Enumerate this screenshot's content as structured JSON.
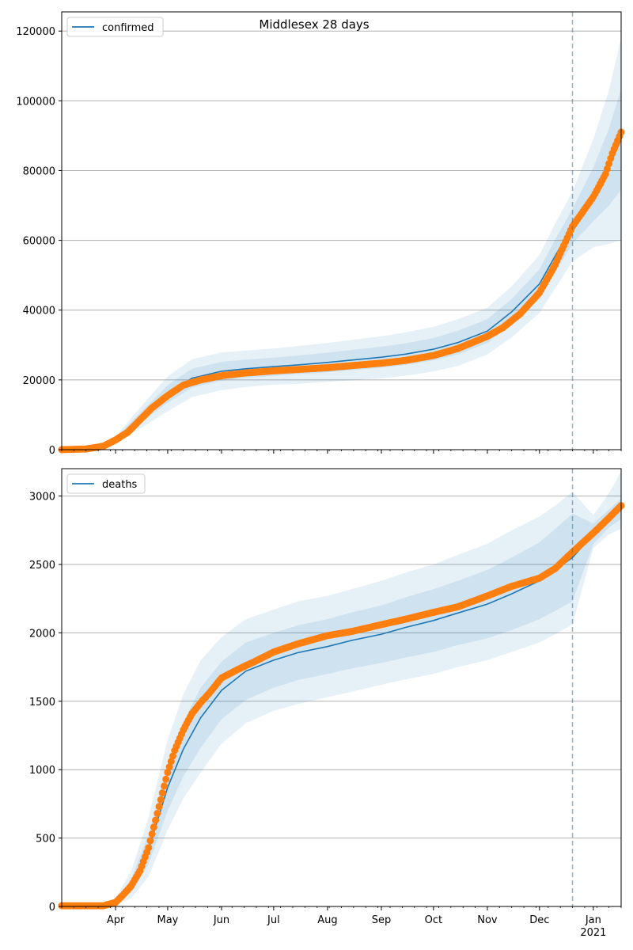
{
  "title": "Middlesex 28 days",
  "colors": {
    "model_line": "#1f77b4",
    "observed_points": "#ff7f0e",
    "band": "#1f77b4",
    "grid": "#b0b0b0",
    "forecast_divider": "#1f77b4"
  },
  "x_axis": {
    "range": [
      "2020-03-01",
      "2021-01-17"
    ],
    "month_labels": [
      {
        "date": "2020-04-01",
        "label": "Apr"
      },
      {
        "date": "2020-05-01",
        "label": "May"
      },
      {
        "date": "2020-06-01",
        "label": "Jun"
      },
      {
        "date": "2020-07-01",
        "label": "Jul"
      },
      {
        "date": "2020-08-01",
        "label": "Aug"
      },
      {
        "date": "2020-09-01",
        "label": "Sep"
      },
      {
        "date": "2020-10-01",
        "label": "Oct"
      },
      {
        "date": "2020-11-01",
        "label": "Nov"
      },
      {
        "date": "2020-12-01",
        "label": "Dec"
      },
      {
        "date": "2021-01-01",
        "label": "Jan"
      }
    ],
    "year_label": {
      "date": "2021-01-01",
      "label": "2021"
    },
    "forecast_start": "2020-12-20"
  },
  "chart_data": [
    {
      "type": "line",
      "legend": "confirmed",
      "legend_position": "top-left",
      "grid": "y",
      "ylim": [
        0,
        125500
      ],
      "yticks": [
        0,
        20000,
        40000,
        60000,
        80000,
        100000,
        120000
      ],
      "line_x": [
        "2020-03-01",
        "2020-03-20",
        "2020-04-01",
        "2020-04-15",
        "2020-05-01",
        "2020-05-15",
        "2020-06-01",
        "2020-06-15",
        "2020-07-01",
        "2020-07-15",
        "2020-08-01",
        "2020-08-15",
        "2020-09-01",
        "2020-09-15",
        "2020-10-01",
        "2020-10-15",
        "2020-11-01",
        "2020-11-15",
        "2020-12-01",
        "2020-12-10",
        "2020-12-20",
        "2021-01-01",
        "2021-01-10",
        "2021-01-17"
      ],
      "line_y": [
        0,
        800,
        3000,
        9000,
        16000,
        20500,
        22500,
        23200,
        23800,
        24300,
        25000,
        25700,
        26500,
        27400,
        28800,
        30700,
        34000,
        39500,
        47500,
        55500,
        64000,
        73000,
        81000,
        89000
      ],
      "points_x": [
        "2020-03-01",
        "2020-03-15",
        "2020-03-25",
        "2020-04-01",
        "2020-04-08",
        "2020-04-15",
        "2020-04-22",
        "2020-05-01",
        "2020-05-10",
        "2020-05-20",
        "2020-06-01",
        "2020-06-15",
        "2020-07-01",
        "2020-07-15",
        "2020-08-01",
        "2020-08-15",
        "2020-09-01",
        "2020-09-15",
        "2020-10-01",
        "2020-10-15",
        "2020-11-01",
        "2020-11-10",
        "2020-11-20",
        "2020-12-01",
        "2020-12-10",
        "2020-12-20",
        "2021-01-01",
        "2021-01-08",
        "2021-01-12",
        "2021-01-17"
      ],
      "points_y": [
        0,
        200,
        1000,
        2800,
        5000,
        8500,
        12000,
        15500,
        18500,
        20000,
        21200,
        22000,
        22600,
        23000,
        23500,
        24100,
        24800,
        25600,
        27000,
        29000,
        32500,
        35000,
        39000,
        45000,
        53000,
        64000,
        72500,
        79000,
        85000,
        91000
      ],
      "band_levels": [
        {
          "lo": [
            0,
            700,
            2600,
            7500,
            13500,
            17800,
            19800,
            20600,
            21200,
            21600,
            22200,
            22800,
            23500,
            24300,
            25600,
            27300,
            30600,
            35800,
            43300,
            50800,
            59000,
            65500,
            70000,
            74500
          ],
          "hi": [
            0,
            900,
            3400,
            10500,
            18500,
            23200,
            25200,
            25800,
            26400,
            27000,
            27800,
            28600,
            29500,
            30500,
            32000,
            34100,
            37400,
            43200,
            51700,
            60200,
            69000,
            81000,
            92000,
            103500
          ]
        },
        {
          "lo": [
            0,
            600,
            2200,
            6000,
            11000,
            15100,
            17100,
            18000,
            18600,
            18900,
            19400,
            19900,
            20500,
            21200,
            22400,
            24000,
            27300,
            32200,
            39200,
            46200,
            54000,
            58000,
            59000,
            60000
          ],
          "hi": [
            0,
            1000,
            3800,
            12000,
            21000,
            25900,
            27900,
            28400,
            29000,
            29700,
            30600,
            31500,
            32500,
            33600,
            35200,
            37400,
            40700,
            46800,
            55800,
            64800,
            74000,
            89000,
            103000,
            118000
          ]
        }
      ]
    },
    {
      "type": "line",
      "legend": "deaths",
      "legend_position": "top-left",
      "grid": "y",
      "ylim": [
        0,
        3200
      ],
      "yticks": [
        0,
        500,
        1000,
        1500,
        2000,
        2500,
        3000
      ],
      "line_x": [
        "2020-03-01",
        "2020-03-25",
        "2020-04-01",
        "2020-04-10",
        "2020-04-20",
        "2020-05-01",
        "2020-05-10",
        "2020-05-20",
        "2020-06-01",
        "2020-06-15",
        "2020-07-01",
        "2020-07-15",
        "2020-08-01",
        "2020-08-15",
        "2020-09-01",
        "2020-09-15",
        "2020-10-01",
        "2020-10-15",
        "2020-11-01",
        "2020-11-15",
        "2020-12-01",
        "2020-12-10",
        "2020-12-20",
        "2021-01-01",
        "2021-01-10",
        "2021-01-17"
      ],
      "line_y": [
        0,
        0,
        30,
        150,
        420,
        870,
        1150,
        1380,
        1580,
        1720,
        1800,
        1855,
        1900,
        1945,
        1990,
        2040,
        2090,
        2145,
        2210,
        2285,
        2380,
        2460,
        2550,
        2720,
        2830,
        2900
      ],
      "points_x": [
        "2020-03-01",
        "2020-03-25",
        "2020-04-01",
        "2020-04-05",
        "2020-04-10",
        "2020-04-15",
        "2020-04-20",
        "2020-04-25",
        "2020-05-01",
        "2020-05-05",
        "2020-05-10",
        "2020-05-15",
        "2020-05-20",
        "2020-05-25",
        "2020-06-01",
        "2020-06-10",
        "2020-06-20",
        "2020-07-01",
        "2020-07-15",
        "2020-08-01",
        "2020-08-15",
        "2020-09-01",
        "2020-09-15",
        "2020-10-01",
        "2020-10-15",
        "2020-11-01",
        "2020-11-15",
        "2020-12-01",
        "2020-12-10",
        "2020-12-20",
        "2021-01-01",
        "2021-01-10",
        "2021-01-17"
      ],
      "points_y": [
        5,
        5,
        30,
        80,
        150,
        260,
        430,
        680,
        980,
        1140,
        1290,
        1410,
        1490,
        1560,
        1670,
        1730,
        1790,
        1860,
        1920,
        1980,
        2010,
        2060,
        2100,
        2150,
        2190,
        2270,
        2340,
        2400,
        2470,
        2590,
        2730,
        2840,
        2930
      ],
      "band_levels": [
        {
          "lo": [
            0,
            0,
            20,
            100,
            310,
            700,
            950,
            1160,
            1370,
            1510,
            1600,
            1655,
            1700,
            1740,
            1780,
            1820,
            1860,
            1910,
            1960,
            2020,
            2100,
            2160,
            2230,
            2650,
            2770,
            2830
          ],
          "hi": [
            0,
            0,
            40,
            200,
            530,
            1040,
            1350,
            1600,
            1790,
            1930,
            2000,
            2055,
            2100,
            2150,
            2200,
            2260,
            2320,
            2380,
            2460,
            2550,
            2660,
            2760,
            2870,
            2800,
            2900,
            2980
          ]
        },
        {
          "lo": [
            0,
            0,
            10,
            60,
            220,
            560,
            790,
            980,
            1190,
            1340,
            1430,
            1480,
            1530,
            1570,
            1620,
            1660,
            1700,
            1750,
            1800,
            1860,
            1930,
            1990,
            2060,
            2620,
            2720,
            2760
          ],
          "hi": [
            0,
            0,
            60,
            260,
            650,
            1220,
            1550,
            1800,
            1970,
            2100,
            2170,
            2230,
            2270,
            2320,
            2380,
            2440,
            2500,
            2570,
            2650,
            2750,
            2850,
            2930,
            3030,
            2860,
            3020,
            3180
          ]
        }
      ]
    }
  ]
}
